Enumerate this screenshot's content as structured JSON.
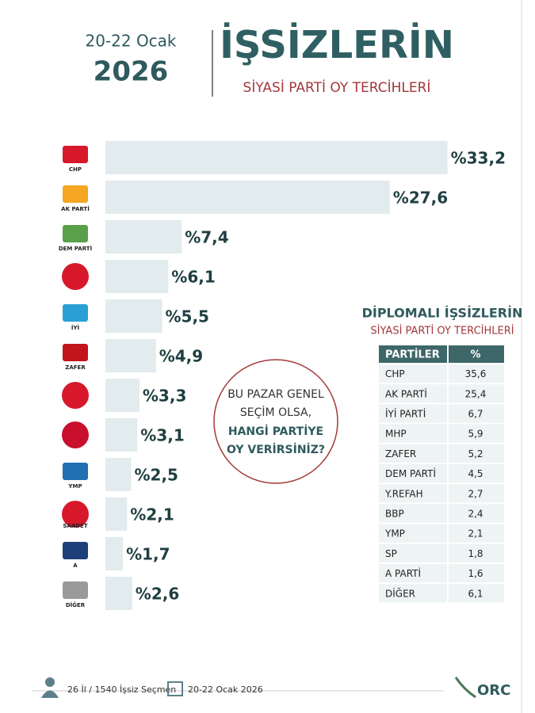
{
  "header": {
    "date": "20-22 Ocak",
    "year": "2026",
    "title": "İŞSİZLERİN",
    "subtitle": "SİYASİ PARTİ OY TERCİHLERİ"
  },
  "chart_data": {
    "type": "bar",
    "categories": [
      "CHP",
      "AK PARTİ",
      "DEM PARTİ",
      null,
      "İYİ",
      "ZAFER",
      null,
      null,
      "YMP",
      "SAADET",
      "A",
      "DİĞER"
    ],
    "values": [
      33.2,
      27.6,
      7.4,
      6.1,
      5.5,
      4.9,
      3.3,
      3.1,
      2.5,
      2.1,
      1.7,
      2.6
    ],
    "value_labels": [
      "%33,2",
      "%27,6",
      "%7,4",
      "%6,1",
      "%5,5",
      "%4,9",
      "%3,3",
      "%3,1",
      "%2,5",
      "%2,1",
      "%1,7",
      "%2,6"
    ],
    "color": "#e2ebed"
  },
  "question": {
    "lines": [
      "BU PAZAR GENEL",
      "SEÇİM OLSA,",
      "HANGİ PARTİYE",
      "OY VERİRSİNİZ?"
    ]
  },
  "table": {
    "title": "DİPLOMALI İŞSİZLERİN",
    "subtitle": "SİYASİ PARTİ OY TERCİHLERİ",
    "header": [
      "PARTİLER",
      "%"
    ],
    "rows": [
      [
        "CHP",
        "35,6"
      ],
      [
        "AK PARTİ",
        "25,4"
      ],
      [
        "İYİ PARTİ",
        "6,7"
      ],
      [
        "MHP",
        "5,9"
      ],
      [
        "ZAFER",
        "5,2"
      ],
      [
        "DEM PARTİ",
        "4,5"
      ],
      [
        "Y.REFAH",
        "2,7"
      ],
      [
        "BBP",
        "2,4"
      ],
      [
        "YMP",
        "2,1"
      ],
      [
        "SP",
        "1,8"
      ],
      [
        "A PARTİ",
        "1,6"
      ],
      [
        "DİĞER",
        "6,1"
      ]
    ]
  },
  "footer": {
    "sample": "26 İl / 1540 İşsiz Seçmen",
    "date": "20-22 Ocak 2026",
    "brand": "ORC"
  }
}
